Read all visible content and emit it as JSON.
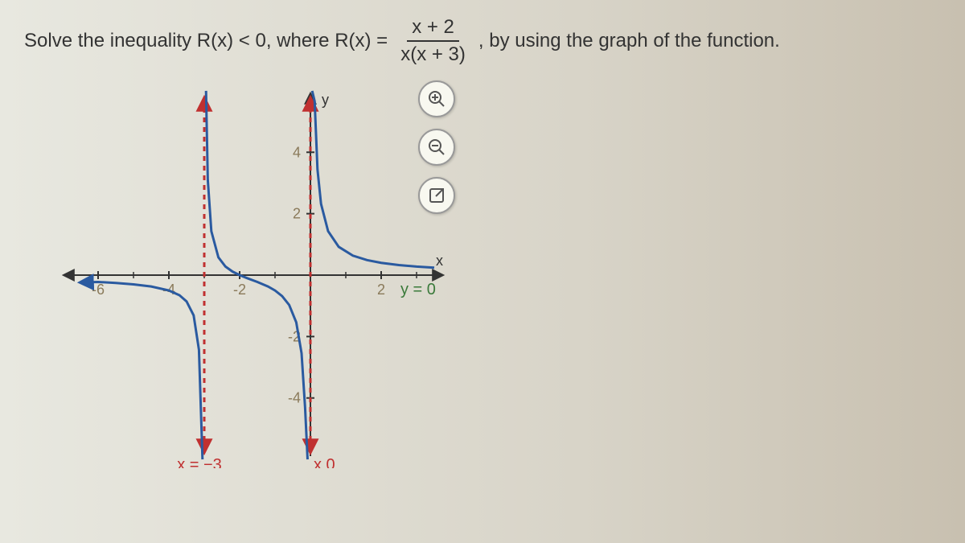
{
  "question": {
    "prefix": "Solve the inequality R(x) < 0, where R(x) =",
    "numerator": "x + 2",
    "denominator": "x(x + 3)",
    "suffix": ", by using the graph of the function."
  },
  "chart": {
    "type": "function-graph",
    "xlim": [
      -6.5,
      3.5
    ],
    "ylim": [
      -5.5,
      5.5
    ],
    "xtick_labels": [
      "-6",
      "-4",
      "-2",
      "2"
    ],
    "xtick_vals": [
      -6,
      -4,
      -2,
      2
    ],
    "ytick_labels": [
      "4",
      "2",
      "-2",
      "-4"
    ],
    "ytick_vals": [
      4,
      2,
      -2,
      -4
    ],
    "x_axis_label": "x",
    "y_axis_label": "y",
    "axis_color": "#333333",
    "tick_label_color": "#8a7a5a",
    "curve_color": "#2a5aa0",
    "curve_width": 3,
    "vasym_color": "#c03030",
    "vasym_dash": "6,6",
    "vasym_width": 3,
    "hasym_label_color": "#3a7a3a",
    "vasymptotes": [
      -3,
      0
    ],
    "hasymptote": 0,
    "vasym_labels": [
      "x = −3",
      "x   0"
    ],
    "hasym_label": "y = 0",
    "background_color": "transparent",
    "arrow_head_size": 10,
    "branches": [
      {
        "points": [
          [
            -6.5,
            -0.24
          ],
          [
            -6.0,
            -0.222
          ],
          [
            -5.5,
            -0.255
          ],
          [
            -5.0,
            -0.3
          ],
          [
            -4.5,
            -0.37
          ],
          [
            -4.0,
            -0.5
          ],
          [
            -3.7,
            -0.656
          ],
          [
            -3.5,
            -0.857
          ],
          [
            -3.3,
            -1.31
          ],
          [
            -3.15,
            -2.43
          ],
          [
            -3.05,
            -6.0
          ]
        ]
      },
      {
        "points": [
          [
            -2.95,
            6.0
          ],
          [
            -2.9,
            3.1
          ],
          [
            -2.8,
            1.43
          ],
          [
            -2.6,
            0.577
          ],
          [
            -2.4,
            0.278
          ],
          [
            -2.2,
            0.114
          ],
          [
            -2.0,
            0.0
          ],
          [
            -1.8,
            -0.093
          ],
          [
            -1.5,
            -0.222
          ],
          [
            -1.2,
            -0.37
          ],
          [
            -1.0,
            -0.5
          ],
          [
            -0.8,
            -0.682
          ],
          [
            -0.6,
            -0.972
          ],
          [
            -0.4,
            -1.538
          ],
          [
            -0.25,
            -2.545
          ],
          [
            -0.15,
            -4.32
          ],
          [
            -0.08,
            -6.0
          ]
        ]
      },
      {
        "points": [
          [
            0.05,
            6.0
          ],
          [
            0.08,
            8.43
          ],
          [
            0.12,
            5.66
          ],
          [
            0.2,
            3.44
          ],
          [
            0.3,
            2.32
          ],
          [
            0.5,
            1.43
          ],
          [
            0.8,
            0.921
          ],
          [
            1.2,
            0.635
          ],
          [
            1.6,
            0.489
          ],
          [
            2.0,
            0.4
          ],
          [
            2.5,
            0.327
          ],
          [
            3.0,
            0.278
          ],
          [
            3.5,
            0.242
          ]
        ]
      }
    ]
  },
  "tools": {
    "zoom_in": "zoom-in",
    "zoom_out": "zoom-out",
    "expand": "expand"
  }
}
